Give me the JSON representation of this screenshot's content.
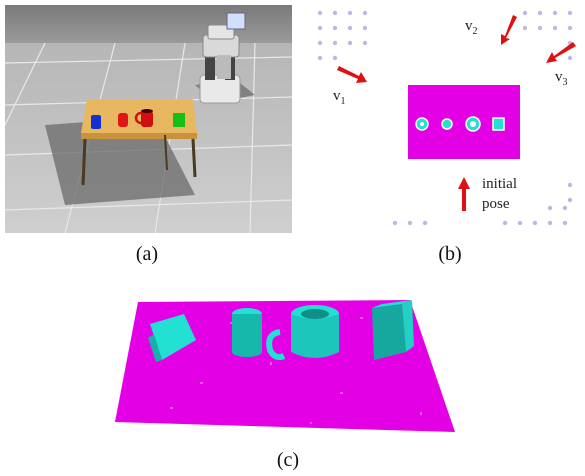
{
  "figure": {
    "captions": [
      "(a)",
      "(b)",
      "(c)"
    ],
    "panel_b": {
      "viewpoint_labels": [
        "v",
        "v",
        "v"
      ],
      "viewpoint_subscripts": [
        "1",
        "2",
        "3"
      ],
      "initial_pose_line1": "initial",
      "initial_pose_line2": "pose"
    },
    "colors": {
      "table_cloud": "#e400e4",
      "object_cloud": "#22e0d2",
      "arrow": "#dd1111",
      "waypoint_dots": "#b9b9e6"
    },
    "icons": [
      "robot-icon",
      "table-icon",
      "cup-icon",
      "mug-icon",
      "arrow-icon"
    ]
  }
}
